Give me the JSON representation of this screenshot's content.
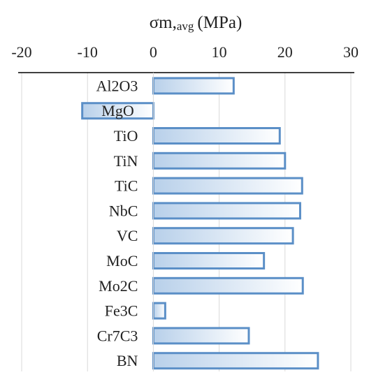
{
  "chart_data": {
    "type": "bar",
    "orientation": "horizontal",
    "title": {
      "symbol": "σm,",
      "subscript": "avg",
      "unit": "(MPa)"
    },
    "xlim": [
      -20,
      30
    ],
    "x_ticks": [
      "-20",
      "-10",
      "0",
      "10",
      "20",
      "30"
    ],
    "x_tick_values": [
      -20,
      -10,
      0,
      10,
      20,
      30
    ],
    "grid": "vertical",
    "axis_position": "top",
    "categories": [
      "Al2O3",
      "MgO",
      "TiO",
      "TiN",
      "TiC",
      "NbC",
      "VC",
      "MoC",
      "Mo2C",
      "Fe3C",
      "Cr7C3",
      "BN"
    ],
    "values": [
      12.2,
      -10.8,
      19.2,
      20.0,
      22.6,
      22.3,
      21.2,
      16.8,
      22.7,
      1.8,
      14.5,
      25.0
    ],
    "colors": {
      "bar_edge": "#5b8fc7",
      "bar_fill_start": "#b8d0ea",
      "bar_fill_end": "#ffffff",
      "grid": "#d9d9d9",
      "axis": "#000000"
    }
  }
}
